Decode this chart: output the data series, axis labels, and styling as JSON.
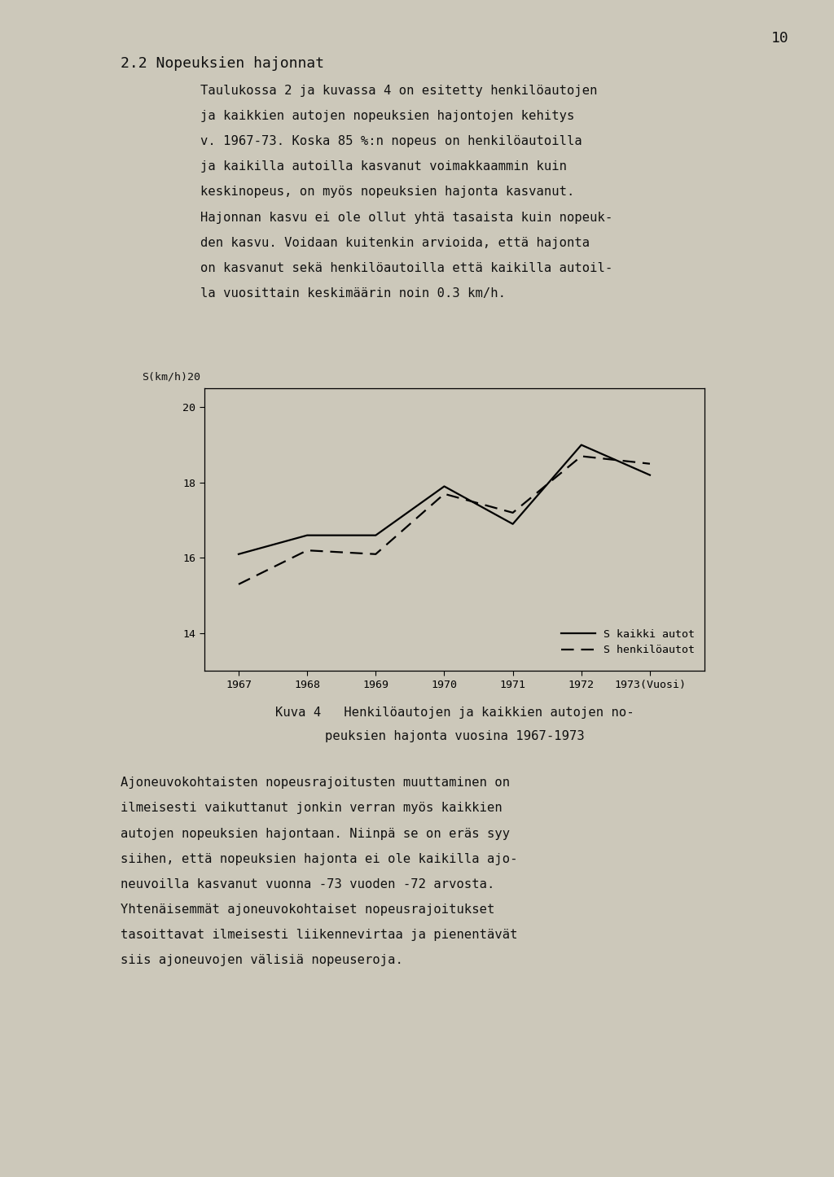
{
  "years": [
    1967,
    1968,
    1969,
    1970,
    1971,
    1972,
    1973
  ],
  "s_kaikki": [
    16.1,
    16.6,
    16.6,
    17.9,
    16.9,
    19.0,
    18.2
  ],
  "s_henkilö": [
    15.3,
    16.2,
    16.1,
    17.7,
    17.2,
    18.7,
    18.5
  ],
  "yticks": [
    14,
    16,
    18,
    20
  ],
  "ylim_bottom": 13.0,
  "ylim_top": 20.5,
  "xlim_left": 1966.5,
  "xlim_right": 1973.8,
  "legend_s_kaikki": "S kaikki autot",
  "legend_s_henkilö": "S henkilöautot",
  "ylabel_text": "S(km/h)20",
  "page_number": "10",
  "page_bg": "#ccc8ba",
  "text_color": "#111111",
  "title": "2.2 Nopeuksien hajonnat",
  "body_lines": [
    "Taulukossa 2 ja kuvassa 4 on esitetty henkilöautojen",
    "ja kaikkien autojen nopeuksien hajontojen kehitys",
    "v. 1967-73. Koska 85 %:n nopeus on henkilöautoilla",
    "ja kaikilla autoilla kasvanut voimakkaammin kuin",
    "keskinopeus, on myös nopeuksien hajonta kasvanut.",
    "Hajonnan kasvu ei ole ollut yhtä tasaista kuin nopeuk-",
    "den kasvu. Voidaan kuitenkin arvioida, että hajonta",
    "on kasvanut sekä henkilöautoilla että kaikilla autoil-",
    "la vuosittain keskimäärin noin 0.3 km/h."
  ],
  "caption_line1": "Kuva 4   Henkilöautojen ja kaikkien autojen no-",
  "caption_line2": "peuksien hajonta vuosina 1967-1973",
  "bottom_lines": [
    "Ajoneuvokohtaisten nopeusrajoitusten muuttaminen on",
    "ilmeisesti vaikuttanut jonkin verran myös kaikkien",
    "autojen nopeuksien hajontaan. Niinpä se on eräs syy",
    "siihen, että nopeuksien hajonta ei ole kaikilla ajo-",
    "neuvoilla kasvanut vuonna -73 vuoden -72 arvosta.",
    "Yhtenäisemmät ajoneuvokohtaiset nopeusrajoitukset",
    "tasoittavat ilmeisesti liikennevirtaa ja pienentävät",
    "siis ajoneuvojen välisiä nopeuseroja."
  ]
}
